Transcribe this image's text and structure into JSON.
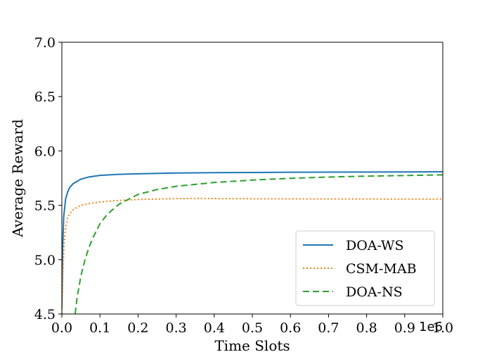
{
  "chart_data": {
    "type": "line",
    "title": "",
    "xlabel": "Time Slots",
    "ylabel": "Average Reward",
    "x_offset_label": "1e6",
    "xlim": [
      0.0,
      1.0
    ],
    "ylim": [
      4.5,
      7.0
    ],
    "xticks": [
      0.0,
      0.1,
      0.2,
      0.3,
      0.4,
      0.5,
      0.6,
      0.7,
      0.8,
      0.9,
      1.0
    ],
    "xtick_labels": [
      "0.0",
      "0.1",
      "0.2",
      "0.3",
      "0.4",
      "0.5",
      "0.6",
      "0.7",
      "0.8",
      "0.9",
      "1.0"
    ],
    "yticks": [
      4.5,
      5.0,
      5.5,
      6.0,
      6.5,
      7.0
    ],
    "ytick_labels": [
      "4.5",
      "5.0",
      "5.5",
      "6.0",
      "6.5",
      "7.0"
    ],
    "grid": false,
    "legend_position": "lower-right",
    "series": [
      {
        "name": "DOA-WS",
        "color": "#1f77b4",
        "style": "solid",
        "x": [
          0.0,
          0.002,
          0.005,
          0.01,
          0.015,
          0.02,
          0.03,
          0.04,
          0.05,
          0.07,
          0.1,
          0.15,
          0.2,
          0.3,
          0.4,
          0.5,
          0.6,
          0.7,
          0.8,
          0.9,
          1.0
        ],
        "y": [
          4.55,
          5.1,
          5.4,
          5.56,
          5.62,
          5.66,
          5.7,
          5.72,
          5.74,
          5.76,
          5.775,
          5.785,
          5.79,
          5.797,
          5.8,
          5.802,
          5.804,
          5.805,
          5.806,
          5.807,
          5.808
        ]
      },
      {
        "name": "CSM-MAB",
        "color": "#ff7f0e",
        "style": "dotted",
        "x": [
          0.0,
          0.003,
          0.006,
          0.01,
          0.015,
          0.02,
          0.03,
          0.04,
          0.05,
          0.07,
          0.1,
          0.15,
          0.2,
          0.3,
          0.35,
          0.4,
          0.5,
          0.6,
          0.7,
          0.8,
          0.9,
          1.0
        ],
        "y": [
          4.5,
          4.9,
          5.15,
          5.3,
          5.38,
          5.42,
          5.46,
          5.48,
          5.5,
          5.515,
          5.53,
          5.545,
          5.553,
          5.562,
          5.563,
          5.562,
          5.56,
          5.559,
          5.558,
          5.558,
          5.557,
          5.557
        ]
      },
      {
        "name": "DOA-NS",
        "color": "#2ca02c",
        "style": "dashed",
        "x": [
          0.035,
          0.04,
          0.05,
          0.06,
          0.07,
          0.08,
          0.1,
          0.12,
          0.15,
          0.2,
          0.25,
          0.3,
          0.4,
          0.5,
          0.6,
          0.7,
          0.8,
          0.9,
          1.0
        ],
        "y": [
          4.5,
          4.65,
          4.85,
          4.99,
          5.1,
          5.19,
          5.33,
          5.42,
          5.51,
          5.6,
          5.645,
          5.675,
          5.71,
          5.732,
          5.748,
          5.76,
          5.768,
          5.774,
          5.78
        ]
      }
    ]
  }
}
